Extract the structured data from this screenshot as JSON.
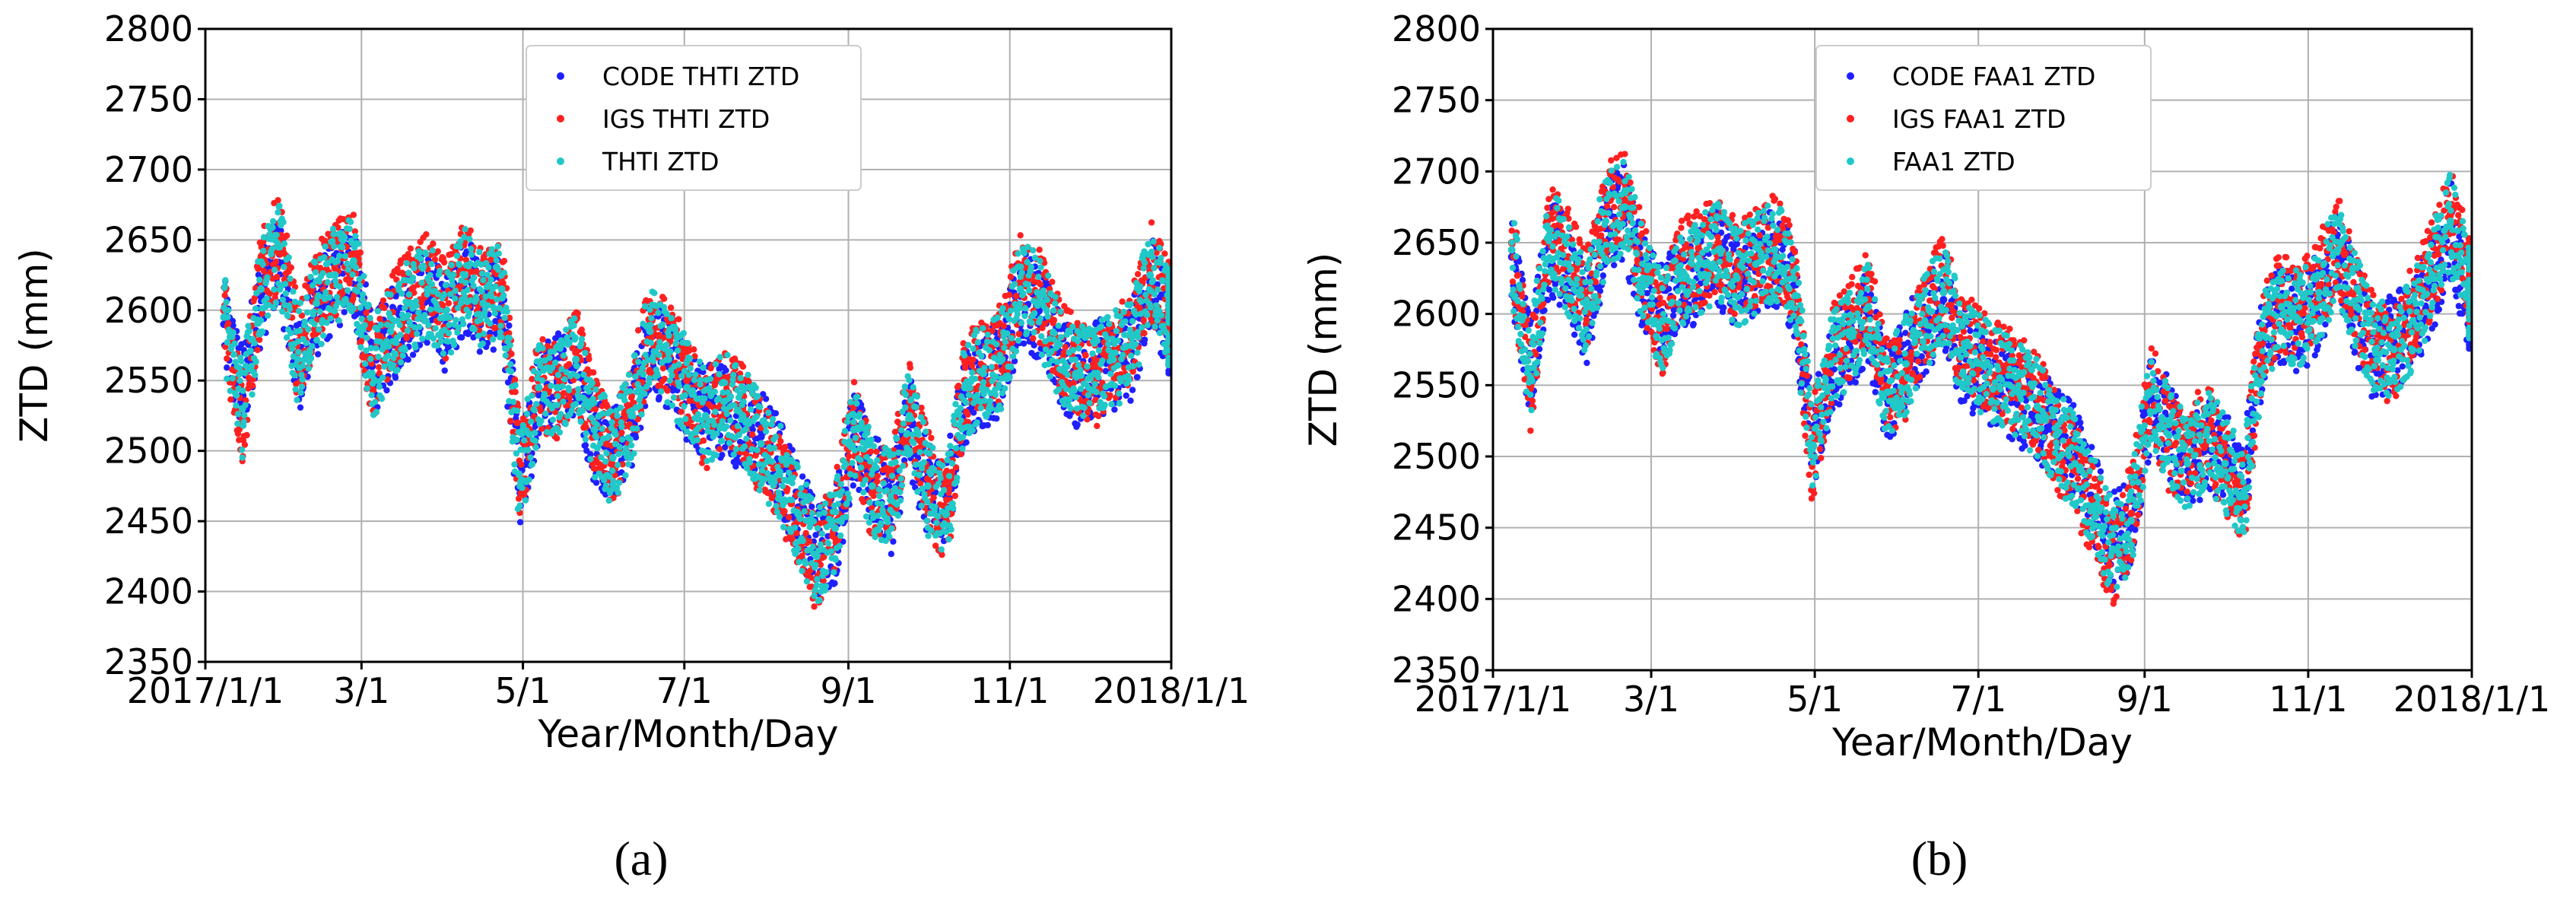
{
  "chart_data": [
    {
      "type": "scatter",
      "panel_label": "(a)",
      "xlabel": "Year/Month/Day",
      "ylabel": "ZTD (mm)",
      "xlim": [
        "2017-01-01",
        "2018-01-01"
      ],
      "ylim": [
        2350,
        2800
      ],
      "xticks": [
        "2017-01-01",
        "2017-03-01",
        "2017-05-01",
        "2017-07-01",
        "2017-09-01",
        "2017-11-01",
        "2018-01-01"
      ],
      "xticklabels": [
        "2017/1/1",
        "3/1",
        "5/1",
        "7/1",
        "9/1",
        "11/1",
        "2018/1/1"
      ],
      "yticks": [
        2350,
        2400,
        2450,
        2500,
        2550,
        2600,
        2650,
        2700,
        2750,
        2800
      ],
      "grid": true,
      "legend_position": "top-center",
      "x": [
        "2017-01-08",
        "2017-01-15",
        "2017-01-22",
        "2017-01-29",
        "2017-02-05",
        "2017-02-12",
        "2017-02-19",
        "2017-02-26",
        "2017-03-05",
        "2017-03-12",
        "2017-03-19",
        "2017-03-26",
        "2017-04-02",
        "2017-04-09",
        "2017-04-16",
        "2017-04-23",
        "2017-04-30",
        "2017-05-07",
        "2017-05-14",
        "2017-05-21",
        "2017-05-28",
        "2017-06-04",
        "2017-06-11",
        "2017-06-18",
        "2017-06-25",
        "2017-07-02",
        "2017-07-09",
        "2017-07-16",
        "2017-07-23",
        "2017-07-30",
        "2017-08-06",
        "2017-08-13",
        "2017-08-20",
        "2017-08-27",
        "2017-09-03",
        "2017-09-10",
        "2017-09-17",
        "2017-09-24",
        "2017-10-01",
        "2017-10-08",
        "2017-10-15",
        "2017-10-22",
        "2017-10-29",
        "2017-11-05",
        "2017-11-12",
        "2017-11-19",
        "2017-11-26",
        "2017-12-03",
        "2017-12-10",
        "2017-12-17",
        "2017-12-24",
        "2017-12-31"
      ],
      "series": [
        {
          "name": "CODE THTI ZTD",
          "color": "#1f1fff",
          "values": [
            2590,
            2540,
            2610,
            2640,
            2560,
            2600,
            2620,
            2630,
            2560,
            2580,
            2600,
            2610,
            2590,
            2620,
            2600,
            2610,
            2470,
            2540,
            2550,
            2560,
            2510,
            2500,
            2520,
            2580,
            2560,
            2540,
            2530,
            2530,
            2520,
            2510,
            2490,
            2460,
            2430,
            2440,
            2510,
            2480,
            2460,
            2520,
            2470,
            2460,
            2540,
            2550,
            2560,
            2610,
            2600,
            2570,
            2550,
            2560,
            2560,
            2570,
            2620,
            2590
          ]
        },
        {
          "name": "IGS THTI ZTD",
          "color": "#ff2020",
          "values": [
            2600,
            2520,
            2620,
            2650,
            2570,
            2610,
            2630,
            2640,
            2550,
            2590,
            2610,
            2620,
            2600,
            2630,
            2610,
            2620,
            2480,
            2550,
            2540,
            2570,
            2520,
            2490,
            2530,
            2590,
            2570,
            2550,
            2520,
            2540,
            2530,
            2500,
            2480,
            2450,
            2420,
            2450,
            2520,
            2470,
            2470,
            2530,
            2480,
            2450,
            2550,
            2560,
            2570,
            2620,
            2610,
            2580,
            2560,
            2550,
            2570,
            2580,
            2630,
            2600
          ]
        },
        {
          "name": "THTI ZTD",
          "color": "#20c8c8",
          "values": [
            2595,
            2530,
            2615,
            2645,
            2565,
            2605,
            2625,
            2635,
            2555,
            2585,
            2605,
            2615,
            2595,
            2625,
            2605,
            2615,
            2475,
            2545,
            2545,
            2565,
            2515,
            2495,
            2525,
            2585,
            2565,
            2545,
            2525,
            2535,
            2525,
            2505,
            2485,
            2455,
            2425,
            2445,
            2515,
            2475,
            2465,
            2525,
            2475,
            2455,
            2545,
            2555,
            2565,
            2615,
            2605,
            2575,
            2555,
            2555,
            2565,
            2575,
            2625,
            2595
          ]
        }
      ]
    },
    {
      "type": "scatter",
      "panel_label": "(b)",
      "xlabel": "Year/Month/Day",
      "ylabel": "ZTD (mm)",
      "xlim": [
        "2017-01-01",
        "2018-01-01"
      ],
      "ylim": [
        2350,
        2800
      ],
      "xticks": [
        "2017-01-01",
        "2017-03-01",
        "2017-05-01",
        "2017-07-01",
        "2017-09-01",
        "2017-11-01",
        "2018-01-01"
      ],
      "xticklabels": [
        "2017/1/1",
        "3/1",
        "5/1",
        "7/1",
        "9/1",
        "11/1",
        "2018/1/1"
      ],
      "yticks": [
        2350,
        2400,
        2450,
        2500,
        2550,
        2600,
        2650,
        2700,
        2750,
        2800
      ],
      "grid": true,
      "legend_position": "top-center",
      "x": [
        "2017-01-08",
        "2017-01-15",
        "2017-01-22",
        "2017-01-29",
        "2017-02-05",
        "2017-02-12",
        "2017-02-19",
        "2017-02-26",
        "2017-03-05",
        "2017-03-12",
        "2017-03-19",
        "2017-03-26",
        "2017-04-02",
        "2017-04-09",
        "2017-04-16",
        "2017-04-23",
        "2017-04-30",
        "2017-05-07",
        "2017-05-14",
        "2017-05-21",
        "2017-05-28",
        "2017-06-04",
        "2017-06-11",
        "2017-06-18",
        "2017-06-25",
        "2017-07-02",
        "2017-07-09",
        "2017-07-16",
        "2017-07-23",
        "2017-07-30",
        "2017-08-06",
        "2017-08-13",
        "2017-08-20",
        "2017-08-27",
        "2017-09-03",
        "2017-09-10",
        "2017-09-17",
        "2017-09-24",
        "2017-10-01",
        "2017-10-08",
        "2017-10-15",
        "2017-10-22",
        "2017-10-29",
        "2017-11-05",
        "2017-11-12",
        "2017-11-19",
        "2017-11-26",
        "2017-12-03",
        "2017-12-10",
        "2017-12-17",
        "2017-12-24",
        "2017-12-31"
      ],
      "series": [
        {
          "name": "CODE FAA1 ZTD",
          "color": "#1f1fff",
          "values": [
            2640,
            2560,
            2650,
            2630,
            2600,
            2660,
            2670,
            2620,
            2600,
            2620,
            2630,
            2640,
            2620,
            2630,
            2640,
            2620,
            2510,
            2560,
            2580,
            2600,
            2540,
            2570,
            2590,
            2610,
            2570,
            2560,
            2550,
            2540,
            2530,
            2520,
            2500,
            2470,
            2440,
            2450,
            2540,
            2520,
            2490,
            2510,
            2500,
            2480,
            2580,
            2600,
            2590,
            2610,
            2640,
            2600,
            2570,
            2580,
            2590,
            2620,
            2660,
            2610
          ]
        },
        {
          "name": "IGS FAA1 ZTD",
          "color": "#ff2020",
          "values": [
            2650,
            2550,
            2660,
            2640,
            2610,
            2670,
            2680,
            2630,
            2590,
            2630,
            2640,
            2650,
            2630,
            2640,
            2650,
            2630,
            2500,
            2570,
            2590,
            2610,
            2550,
            2560,
            2600,
            2620,
            2580,
            2570,
            2560,
            2550,
            2540,
            2510,
            2490,
            2460,
            2430,
            2460,
            2550,
            2510,
            2500,
            2520,
            2490,
            2470,
            2590,
            2610,
            2600,
            2620,
            2650,
            2610,
            2580,
            2570,
            2600,
            2630,
            2670,
            2620
          ]
        },
        {
          "name": "FAA1 ZTD",
          "color": "#20c8c8",
          "values": [
            2645,
            2555,
            2655,
            2635,
            2605,
            2665,
            2675,
            2625,
            2595,
            2625,
            2635,
            2645,
            2625,
            2635,
            2645,
            2625,
            2505,
            2565,
            2585,
            2605,
            2545,
            2565,
            2595,
            2615,
            2575,
            2565,
            2555,
            2545,
            2535,
            2515,
            2495,
            2465,
            2435,
            2455,
            2545,
            2515,
            2495,
            2515,
            2495,
            2475,
            2585,
            2605,
            2595,
            2615,
            2645,
            2605,
            2575,
            2575,
            2595,
            2625,
            2665,
            2615
          ]
        }
      ]
    }
  ]
}
